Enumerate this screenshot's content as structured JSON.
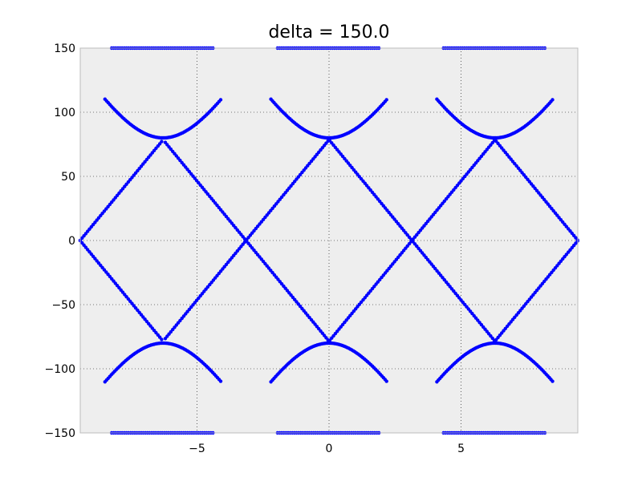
{
  "chart_data": {
    "type": "scatter",
    "title": "delta = 150.0",
    "xlabel": "",
    "ylabel": "",
    "xlim": [
      -9.42,
      9.42
    ],
    "ylim": [
      -150,
      150
    ],
    "xticks": [
      -5,
      0,
      5
    ],
    "xtick_labels": [
      "−5",
      "0",
      "5"
    ],
    "yticks": [
      -150,
      -100,
      -50,
      0,
      50,
      100,
      150
    ],
    "ytick_labels": [
      "−150",
      "−100",
      "−50",
      "0",
      "50",
      "100",
      "150"
    ],
    "grid": true,
    "legend": "none",
    "marker_color": "#0000ff",
    "plot_background": "#eeeeee",
    "description_of_curves": "phase-plane trajectories: 4 straight lines y = ±25·(x ± π), plus hyperbola-like branches near x = -2π, 0, 2π and horizontal clipped segments at y = ±150",
    "series": [
      {
        "points": []
      }
    ]
  }
}
